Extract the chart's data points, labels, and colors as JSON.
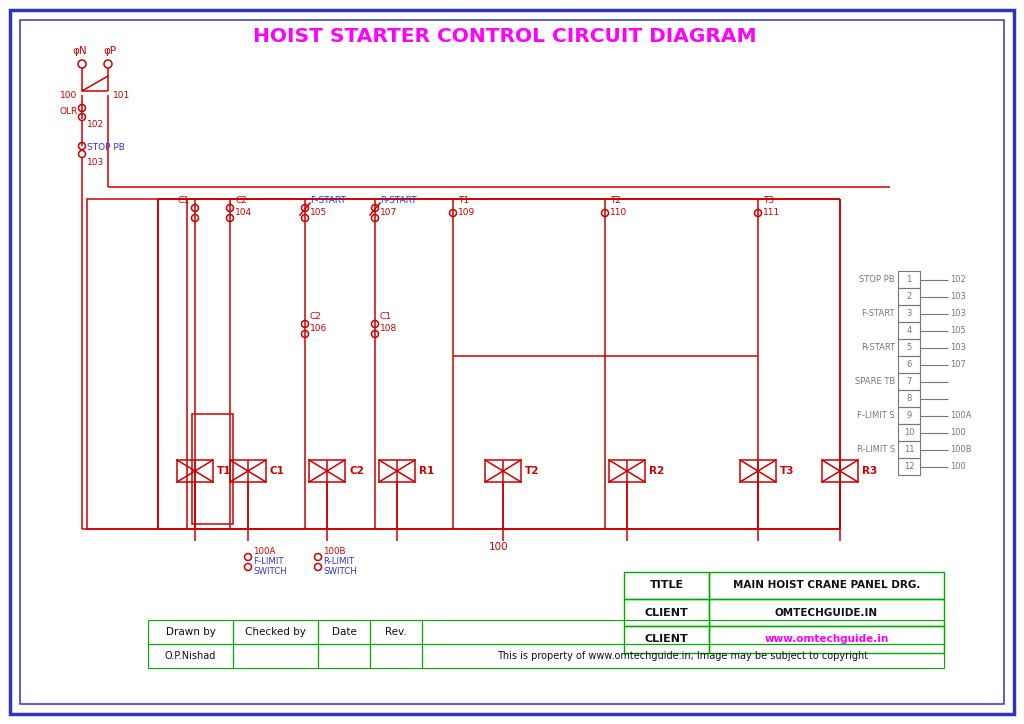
{
  "title": "HOIST STARTER CONTROL CIRCUIT DIAGRAM",
  "cc": "#CC0000",
  "bc": "#3333BB",
  "tc": "#777777",
  "gc": "#00AA00",
  "mc": "#FF00FF",
  "bk": "#111111",
  "wh": "#FFFFFF",
  "blue_lbl": "#3333CC",
  "info_rows": [
    [
      "TITLE",
      "MAIN HOIST CRANE PANEL DRG.",
      "#111111"
    ],
    [
      "CLIENT",
      "OMTECHGUIDE.IN",
      "#111111"
    ],
    [
      "CLIENT",
      "www.omtechguide.in",
      "#FF00FF"
    ]
  ],
  "tb_entries": [
    [
      "STOP PB",
      "1",
      "102"
    ],
    [
      "",
      "2",
      "103"
    ],
    [
      "F-START",
      "3",
      "103"
    ],
    [
      "",
      "4",
      "105"
    ],
    [
      "R-START",
      "5",
      "103"
    ],
    [
      "",
      "6",
      "107"
    ],
    [
      "SPARE TB",
      "7",
      ""
    ],
    [
      "",
      "8",
      ""
    ],
    [
      "F-LIMIT S",
      "9",
      "100A"
    ],
    [
      "",
      "10",
      "100"
    ],
    [
      "R-LIMIT S",
      "11",
      "100B"
    ],
    [
      "",
      "12",
      "100"
    ]
  ],
  "coil_labels": [
    "T1",
    "C1",
    "C2",
    "R1",
    "T2",
    "R2",
    "T3",
    "R3"
  ],
  "copyright_text": "This is property of www.omtechguide.in, Image may be subject to copyright",
  "drawn_by": "O.P.Nishad"
}
